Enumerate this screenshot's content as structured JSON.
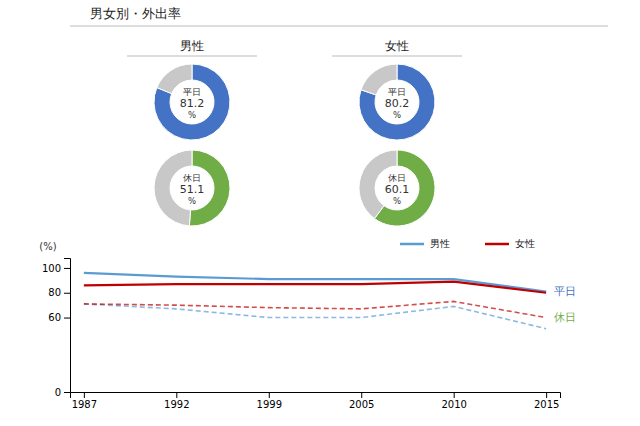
{
  "chart_data": [
    {
      "type": "pie",
      "title": "男女別・外出率",
      "subtitle": "男性",
      "values": [
        81.2,
        18.8
      ],
      "colors": [
        "#4472C4",
        "#C8C8C8"
      ],
      "annotations": [
        "平日",
        "%"
      ]
    },
    {
      "type": "pie",
      "subtitle": "女性",
      "values": [
        80.2,
        19.8
      ],
      "colors": [
        "#4472C4",
        "#C8C8C8"
      ],
      "annotations": [
        "平日",
        "%"
      ]
    },
    {
      "type": "pie",
      "values": [
        51.1,
        48.9
      ],
      "colors": [
        "#70AD47",
        "#C8C8C8"
      ],
      "annotations": [
        "休日",
        "%"
      ]
    },
    {
      "type": "pie",
      "values": [
        60.1,
        39.9
      ],
      "colors": [
        "#70AD47",
        "#C8C8C8"
      ],
      "annotations": [
        "休日",
        "%"
      ]
    },
    {
      "type": "line",
      "categories": [
        "1987",
        "1992",
        "1999",
        "2005",
        "2010",
        "2015"
      ],
      "series": [
        {
          "name": "男性",
          "color": "#5B9BD5",
          "line_style": "solid",
          "values": [
            96,
            93,
            91,
            91,
            91,
            81
          ]
        },
        {
          "name": "女性",
          "color": "#C00000",
          "line_style": "solid",
          "values": [
            86,
            87,
            87,
            87,
            89,
            80
          ]
        },
        {
          "color": "#5B9BD5",
          "line_style": "dashed",
          "values": [
            71,
            67,
            60,
            60,
            69,
            51
          ]
        },
        {
          "color": "#C00000",
          "line_style": "dashed",
          "values": [
            71,
            70,
            68,
            67,
            73,
            60
          ]
        }
      ],
      "ylim": [
        0,
        108
      ],
      "yticks": [
        0,
        60,
        80,
        100
      ],
      "y_label": "(%)",
      "annotations": [
        {
          "text": "平日",
          "color": "#4472C4"
        },
        {
          "text": "休日",
          "color": "#70AD47"
        }
      ],
      "legend": "top-right",
      "grid": false
    }
  ]
}
